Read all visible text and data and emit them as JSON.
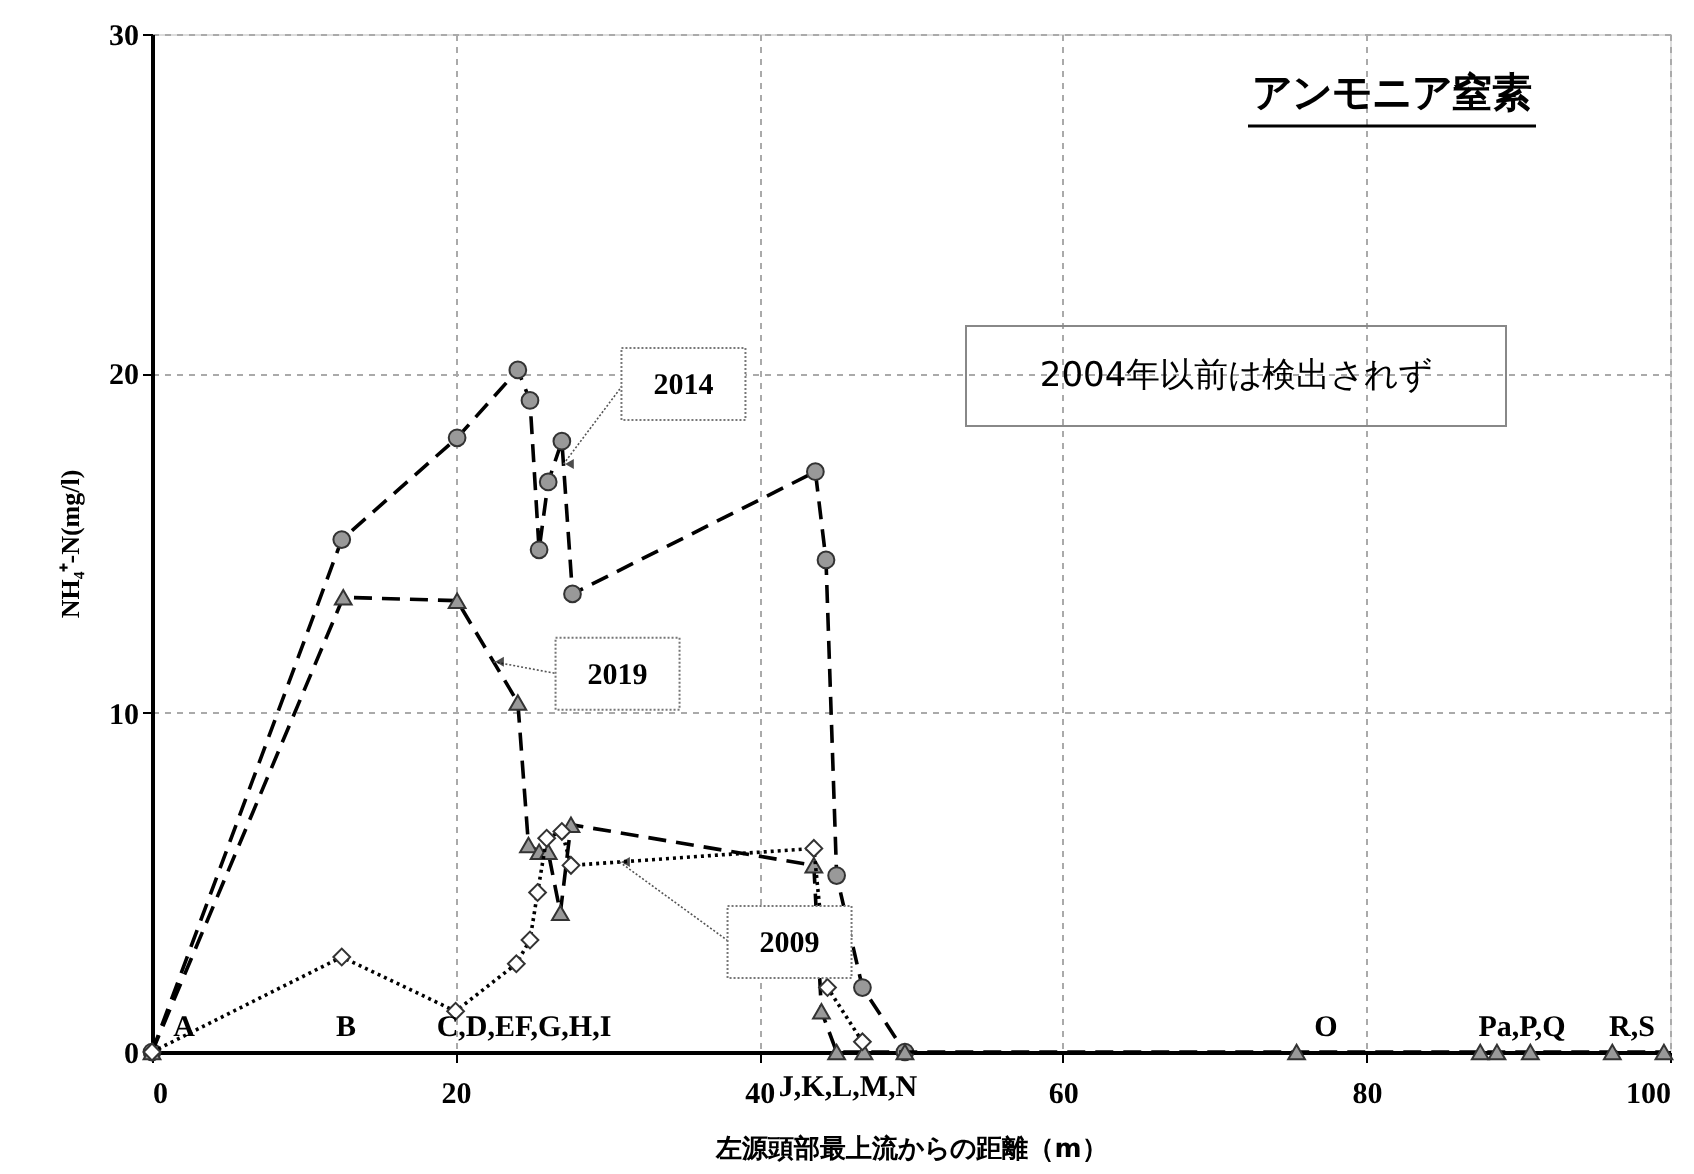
{
  "chart_data": {
    "type": "line",
    "xlabel": "左源頭部最上流からの距離（m）",
    "ylabel": "NH₄⁺-N(mg/l)",
    "xlim": [
      0,
      100
    ],
    "ylim": [
      0,
      30
    ],
    "xticks": [
      0,
      20,
      40,
      60,
      80,
      100
    ],
    "yticks": [
      0,
      10,
      20,
      30
    ],
    "grid": true,
    "series": [
      {
        "name": "2014",
        "color": "#999999",
        "marker": "circle",
        "line_style": "dashed",
        "x": [
          0,
          12.5,
          20.1,
          24.1,
          24.9,
          25.5,
          26.1,
          27.0,
          27.7,
          43.7,
          44.4,
          45.1,
          46.8,
          49.6
        ],
        "values": [
          0,
          15.1,
          18.1,
          20.1,
          19.2,
          14.8,
          16.8,
          18.0,
          13.5,
          17.1,
          14.5,
          5.2,
          1.9,
          0
        ]
      },
      {
        "name": "2019",
        "color": "#999999",
        "marker": "triangle",
        "line_style": "dashed",
        "x": [
          0,
          12.6,
          20.1,
          24.1,
          24.8,
          25.5,
          26.1,
          26.9,
          27.6,
          43.6,
          44.1,
          45.1,
          46.9,
          49.6,
          75.4,
          87.5,
          88.6,
          90.8,
          96.2,
          99.6
        ],
        "values": [
          0,
          13.4,
          13.3,
          10.3,
          6.1,
          5.9,
          5.9,
          4.1,
          6.7,
          5.5,
          1.2,
          0,
          0,
          0,
          0,
          0,
          0,
          0,
          0,
          0
        ]
      },
      {
        "name": "2009",
        "color": "#ffffff",
        "marker": "diamond",
        "line_style": "dotted",
        "x": [
          0,
          12.5,
          20.0,
          24.0,
          24.9,
          25.4,
          26.0,
          27.0,
          27.6,
          43.6,
          44.5,
          46.8
        ],
        "values": [
          0,
          2.8,
          1.2,
          2.6,
          3.3,
          4.7,
          6.3,
          6.5,
          5.5,
          6.0,
          1.9,
          0.3
        ]
      }
    ],
    "annotations": [
      "アンモニア窒素",
      "2004年以前は検出されず",
      "A",
      "B",
      "C,D,EF,G,H,I",
      "J,K,L,M,N",
      "O",
      "Pa,P,Q",
      "R,S"
    ]
  }
}
